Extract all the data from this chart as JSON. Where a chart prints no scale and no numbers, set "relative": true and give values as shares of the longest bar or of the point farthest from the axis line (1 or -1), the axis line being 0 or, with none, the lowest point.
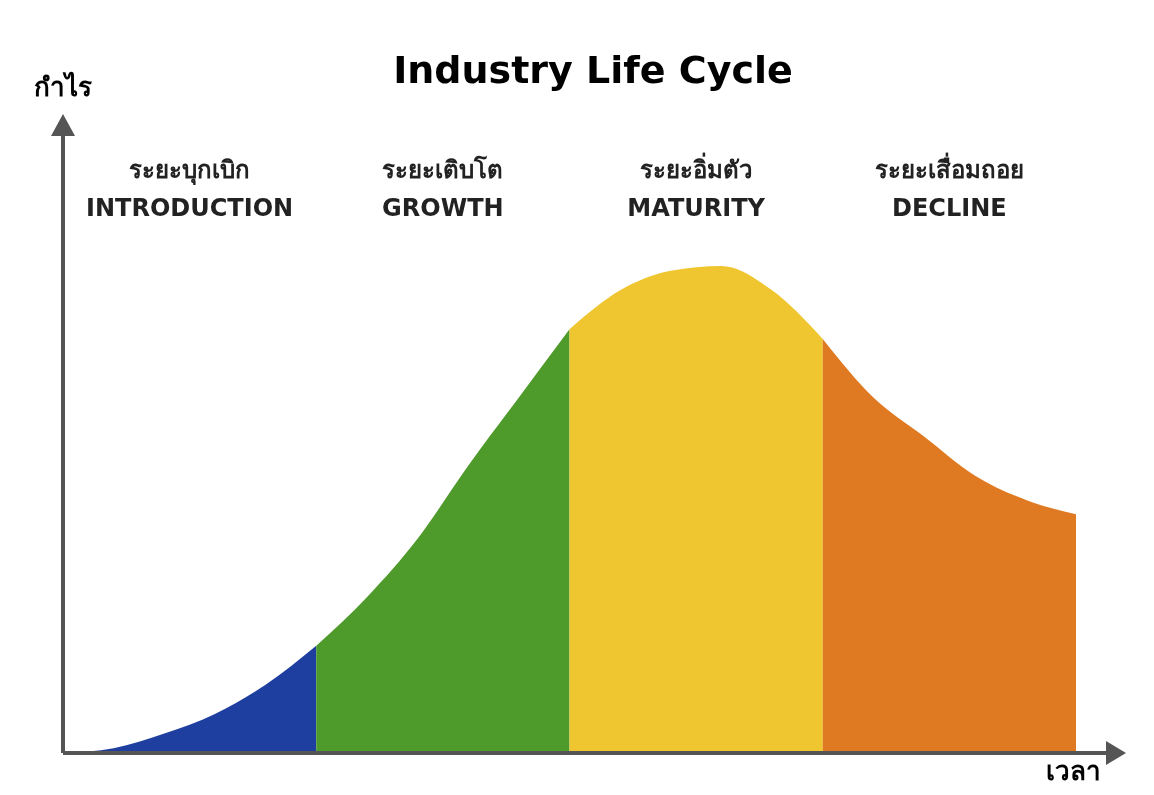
{
  "chart_data": {
    "type": "area",
    "title": "Industry Life Cycle",
    "xlabel": "เวลา",
    "relative": true,
    "annotations": [
      "ระยะบุกเบิก\nINTRODUCTION",
      "ระยะเติบโต\nGROWTH",
      "ระยะอิ่มตัว\nMATURITY",
      "ระยะเสื่อมถอย\nDECLINE",
      "กำไร"
    ],
    "categories": [
      null,
      null,
      null,
      null,
      null,
      null,
      null,
      null,
      null,
      null,
      null,
      null,
      null,
      null,
      null,
      null,
      null,
      null,
      null,
      null,
      null
    ],
    "series": [
      {
        "color": "#1f3fa0",
        "values": [
          0,
          0.01,
          0.04,
          0.08,
          0.14,
          0.22,
          null,
          null,
          null,
          null,
          null,
          null,
          null,
          null,
          null,
          null,
          null,
          null,
          null,
          null,
          null
        ]
      },
      {
        "color": "#4e9a2a",
        "values": [
          null,
          null,
          null,
          null,
          null,
          0.22,
          0.32,
          0.44,
          0.59,
          0.73,
          0.87,
          null,
          null,
          null,
          null,
          null,
          null,
          null,
          null,
          null,
          null
        ]
      },
      {
        "color": "#f0c630",
        "values": [
          null,
          null,
          null,
          null,
          null,
          null,
          null,
          null,
          null,
          null,
          0.87,
          0.95,
          0.99,
          1,
          0.95,
          0.85,
          null,
          null,
          null,
          null,
          null
        ]
      },
      {
        "color": "#e07a22",
        "values": [
          null,
          null,
          null,
          null,
          null,
          null,
          null,
          null,
          null,
          null,
          null,
          null,
          null,
          null,
          null,
          0.85,
          0.73,
          0.65,
          0.57,
          0.52,
          0.49
        ]
      }
    ]
  }
}
